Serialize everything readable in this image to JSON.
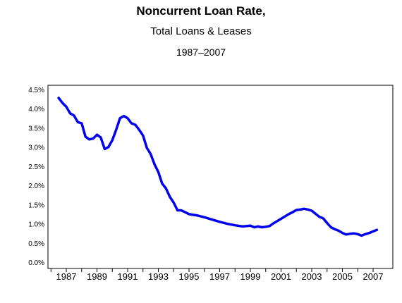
{
  "title": "Noncurrent Loan Rate,",
  "subtitle": "Total Loans & Leases",
  "period": "1987–2007",
  "chart_data": {
    "type": "line",
    "title": "Noncurrent Loan Rate,",
    "subtitle": "Total Loans & Leases",
    "xlabel": "",
    "ylabel": "",
    "xlim": [
      1986.25,
      2007.75
    ],
    "ylim": [
      0,
      4.5
    ],
    "yticks": [
      "0.0%",
      "0.5%",
      "1.0%",
      "1.5%",
      "2.0%",
      "2.5%",
      "3.0%",
      "3.5%",
      "4.0%",
      "4.5%"
    ],
    "xticks": [
      "1987",
      "1989",
      "1991",
      "1993",
      "1995",
      "1997",
      "1999",
      "2001",
      "2003",
      "2005",
      "2007"
    ],
    "grid": false,
    "legend": "none",
    "series_color": "#0000ee",
    "series": [
      {
        "points": [
          [
            1986.5,
            4.28
          ],
          [
            1986.75,
            4.15
          ],
          [
            1987.0,
            4.05
          ],
          [
            1987.25,
            3.88
          ],
          [
            1987.5,
            3.82
          ],
          [
            1987.75,
            3.65
          ],
          [
            1988.0,
            3.62
          ],
          [
            1988.25,
            3.27
          ],
          [
            1988.5,
            3.2
          ],
          [
            1988.75,
            3.22
          ],
          [
            1989.0,
            3.32
          ],
          [
            1989.25,
            3.25
          ],
          [
            1989.5,
            2.95
          ],
          [
            1989.75,
            3.0
          ],
          [
            1990.0,
            3.18
          ],
          [
            1990.25,
            3.45
          ],
          [
            1990.5,
            3.75
          ],
          [
            1990.75,
            3.81
          ],
          [
            1991.0,
            3.75
          ],
          [
            1991.25,
            3.62
          ],
          [
            1991.5,
            3.58
          ],
          [
            1991.75,
            3.45
          ],
          [
            1992.0,
            3.3
          ],
          [
            1992.25,
            2.98
          ],
          [
            1992.5,
            2.82
          ],
          [
            1992.75,
            2.55
          ],
          [
            1993.0,
            2.35
          ],
          [
            1993.25,
            2.05
          ],
          [
            1993.5,
            1.92
          ],
          [
            1993.75,
            1.7
          ],
          [
            1994.0,
            1.55
          ],
          [
            1994.25,
            1.35
          ],
          [
            1994.5,
            1.35
          ],
          [
            1994.75,
            1.3
          ],
          [
            1995.0,
            1.25
          ],
          [
            1995.5,
            1.22
          ],
          [
            1996.0,
            1.17
          ],
          [
            1996.5,
            1.11
          ],
          [
            1997.0,
            1.05
          ],
          [
            1997.5,
            1.0
          ],
          [
            1998.0,
            0.96
          ],
          [
            1998.5,
            0.93
          ],
          [
            1999.0,
            0.95
          ],
          [
            1999.25,
            0.91
          ],
          [
            1999.5,
            0.93
          ],
          [
            1999.75,
            0.91
          ],
          [
            2000.0,
            0.92
          ],
          [
            2000.25,
            0.94
          ],
          [
            2000.5,
            1.01
          ],
          [
            2000.75,
            1.07
          ],
          [
            2001.0,
            1.13
          ],
          [
            2001.25,
            1.19
          ],
          [
            2001.5,
            1.25
          ],
          [
            2001.75,
            1.3
          ],
          [
            2002.0,
            1.36
          ],
          [
            2002.25,
            1.37
          ],
          [
            2002.5,
            1.39
          ],
          [
            2002.75,
            1.37
          ],
          [
            2003.0,
            1.34
          ],
          [
            2003.25,
            1.26
          ],
          [
            2003.5,
            1.18
          ],
          [
            2003.75,
            1.14
          ],
          [
            2004.0,
            1.02
          ],
          [
            2004.25,
            0.91
          ],
          [
            2004.5,
            0.86
          ],
          [
            2004.75,
            0.82
          ],
          [
            2005.0,
            0.76
          ],
          [
            2005.25,
            0.72
          ],
          [
            2005.5,
            0.74
          ],
          [
            2005.75,
            0.75
          ],
          [
            2006.0,
            0.73
          ],
          [
            2006.25,
            0.69
          ],
          [
            2006.5,
            0.73
          ],
          [
            2006.75,
            0.76
          ],
          [
            2007.0,
            0.8
          ],
          [
            2007.25,
            0.84
          ]
        ]
      }
    ]
  }
}
